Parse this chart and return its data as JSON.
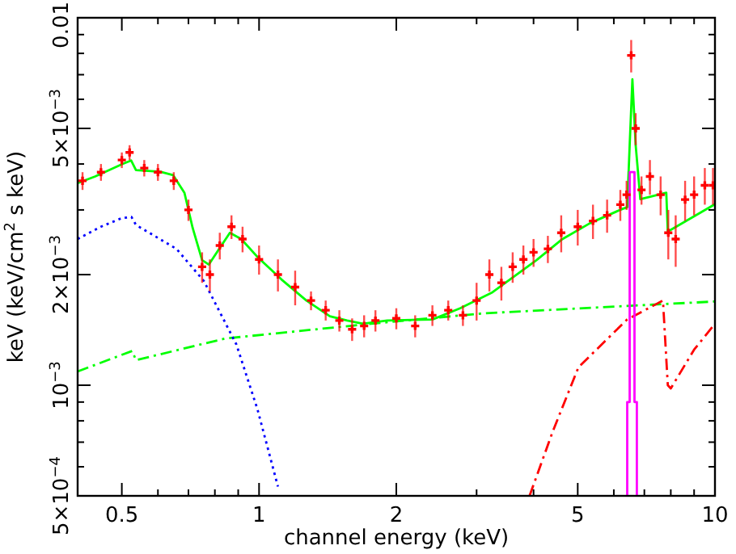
{
  "chart_data": {
    "type": "line",
    "xlabel": "channel energy (keV)",
    "ylabel": "keV (keV/cm$^{2}$ s keV)",
    "log": "xy",
    "grid": false,
    "xlim": [
      0.4,
      10
    ],
    "ylim": [
      0.0005,
      0.01
    ],
    "xticks": [
      {
        "value": 0.4,
        "label": null
      },
      0.5,
      {
        "value": 0.6,
        "label": null
      },
      {
        "value": 0.7,
        "label": null
      },
      {
        "value": 0.8,
        "label": null
      },
      {
        "value": 0.9,
        "label": null
      },
      1,
      2,
      {
        "value": 3,
        "label": null
      },
      {
        "value": 4,
        "label": null
      },
      5,
      {
        "value": 6,
        "label": null
      },
      {
        "value": 7,
        "label": null
      },
      {
        "value": 8,
        "label": null
      },
      {
        "value": 9,
        "label": null
      },
      10
    ],
    "yticks": [
      {
        "value": 0.0005,
        "label": "5×10$^{−4}$"
      },
      {
        "value": 0.0006,
        "label": null
      },
      {
        "value": 0.0007,
        "label": null
      },
      {
        "value": 0.0008,
        "label": null
      },
      {
        "value": 0.0009,
        "label": null
      },
      {
        "value": 0.001,
        "label": "10$^{−3}$"
      },
      {
        "value": 0.002,
        "label": "2×10$^{−3}$"
      },
      {
        "value": 0.003,
        "label": null
      },
      {
        "value": 0.004,
        "label": null
      },
      {
        "value": 0.005,
        "label": "5×10$^{−3}$"
      },
      {
        "value": 0.006,
        "label": null
      },
      {
        "value": 0.007,
        "label": null
      },
      {
        "value": 0.008,
        "label": null
      },
      {
        "value": 0.009,
        "label": null
      },
      {
        "value": 0.01,
        "label": "0.01"
      }
    ],
    "series": [
      {
        "type": "scatter",
        "color": "#ff0000",
        "marker": "cross",
        "x": [
          0.41,
          0.45,
          0.5,
          0.52,
          0.56,
          0.6,
          0.65,
          0.7,
          0.75,
          0.78,
          0.82,
          0.87,
          0.92,
          1.0,
          1.1,
          1.2,
          1.3,
          1.4,
          1.5,
          1.6,
          1.7,
          1.8,
          2.0,
          2.2,
          2.4,
          2.6,
          2.8,
          3.0,
          3.2,
          3.4,
          3.6,
          3.8,
          4.0,
          4.3,
          4.6,
          5.0,
          5.4,
          5.8,
          6.2,
          6.4,
          6.55,
          6.7,
          6.9,
          7.2,
          7.6,
          7.9,
          8.2,
          8.6,
          9.0,
          9.5,
          9.9
        ],
        "values": [
          0.0036,
          0.0038,
          0.0041,
          0.0043,
          0.0039,
          0.0038,
          0.0036,
          0.003,
          0.0021,
          0.002,
          0.0024,
          0.0027,
          0.0025,
          0.0022,
          0.002,
          0.00185,
          0.0017,
          0.0016,
          0.0015,
          0.00142,
          0.00145,
          0.0015,
          0.00152,
          0.00145,
          0.00155,
          0.0016,
          0.00155,
          0.0017,
          0.002,
          0.0019,
          0.0021,
          0.0022,
          0.0023,
          0.00235,
          0.0026,
          0.0027,
          0.0028,
          0.0029,
          0.0031,
          0.0033,
          0.0079,
          0.005,
          0.0034,
          0.0037,
          0.0033,
          0.0026,
          0.0025,
          0.0032,
          0.0033,
          0.0035,
          0.0035
        ],
        "errors": [
          0.0002,
          0.0002,
          0.0002,
          0.0002,
          0.0002,
          0.0002,
          0.0002,
          0.0002,
          0.0002,
          0.0002,
          0.0002,
          0.0002,
          0.0002,
          0.0002,
          0.0002,
          0.0002,
          0.0001,
          0.0001,
          0.0001,
          0.0001,
          0.0001,
          0.0001,
          0.0001,
          0.0001,
          0.0001,
          0.0001,
          0.0001,
          0.0002,
          0.0002,
          0.0002,
          0.0002,
          0.0002,
          0.0002,
          0.0002,
          0.0003,
          0.0003,
          0.0003,
          0.0003,
          0.0003,
          0.0003,
          0.0008,
          0.0005,
          0.0003,
          0.0004,
          0.0004,
          0.0004,
          0.0004,
          0.0004,
          0.0004,
          0.0004,
          0.0004
        ]
      },
      {
        "color": "#00ff00",
        "line_style": "solid",
        "x": [
          0.4,
          0.437,
          0.502,
          0.524,
          0.537,
          0.607,
          0.648,
          0.686,
          0.715,
          0.75,
          0.776,
          0.808,
          0.863,
          0.914,
          0.99,
          1.12,
          1.27,
          1.43,
          1.56,
          1.69,
          1.91,
          2.4,
          2.76,
          3.25,
          4.06,
          4.63,
          5.32,
          6.27,
          6.42,
          6.5,
          6.59,
          6.7,
          6.86,
          7.82,
          7.88,
          10
        ],
        "values": [
          0.00355,
          0.0037,
          0.004,
          0.00409,
          0.00385,
          0.00381,
          0.00373,
          0.00334,
          0.00268,
          0.00219,
          0.00213,
          0.0023,
          0.0026,
          0.0025,
          0.00224,
          0.00194,
          0.0017,
          0.00154,
          0.0015,
          0.00147,
          0.0015,
          0.00151,
          0.00162,
          0.00179,
          0.00219,
          0.0025,
          0.00276,
          0.00302,
          0.00305,
          0.0045,
          0.0068,
          0.0045,
          0.00321,
          0.00334,
          0.00262,
          0.00311
        ]
      },
      {
        "color": "#00ff00",
        "line_style": "dashed",
        "x": [
          0.4,
          0.527,
          0.537,
          0.842,
          1.76,
          3.12,
          10
        ],
        "values": [
          0.00109,
          0.00124,
          0.00117,
          0.00134,
          0.00147,
          0.00157,
          0.00169
        ]
      },
      {
        "color": "#0000ff",
        "line_style": "dotted",
        "x": [
          0.4,
          0.45,
          0.5,
          0.525,
          0.537,
          0.659,
          0.757,
          0.892,
          0.992,
          1.1
        ],
        "values": [
          0.0025,
          0.0027,
          0.00285,
          0.00287,
          0.00273,
          0.00235,
          0.00192,
          0.00129,
          0.00086,
          0.00053
        ]
      },
      {
        "color": "#ff0000",
        "line_style": "dashed",
        "x": [
          3.92,
          4.41,
          5.02,
          6.42,
          7.69,
          7.88,
          8.0,
          9.0,
          10
        ],
        "values": [
          0.0005,
          0.00075,
          0.00112,
          0.00151,
          0.0017,
          0.001,
          0.00098,
          0.00125,
          0.00147
        ]
      },
      {
        "color": "#ff00ff",
        "line_style": "solid",
        "x": [
          6.42,
          6.42,
          6.5,
          6.5,
          6.66,
          6.66,
          6.74,
          6.74
        ],
        "values": [
          0.0005,
          0.0009,
          0.0009,
          0.0038,
          0.0038,
          0.0009,
          0.0009,
          0.0005
        ]
      }
    ]
  }
}
